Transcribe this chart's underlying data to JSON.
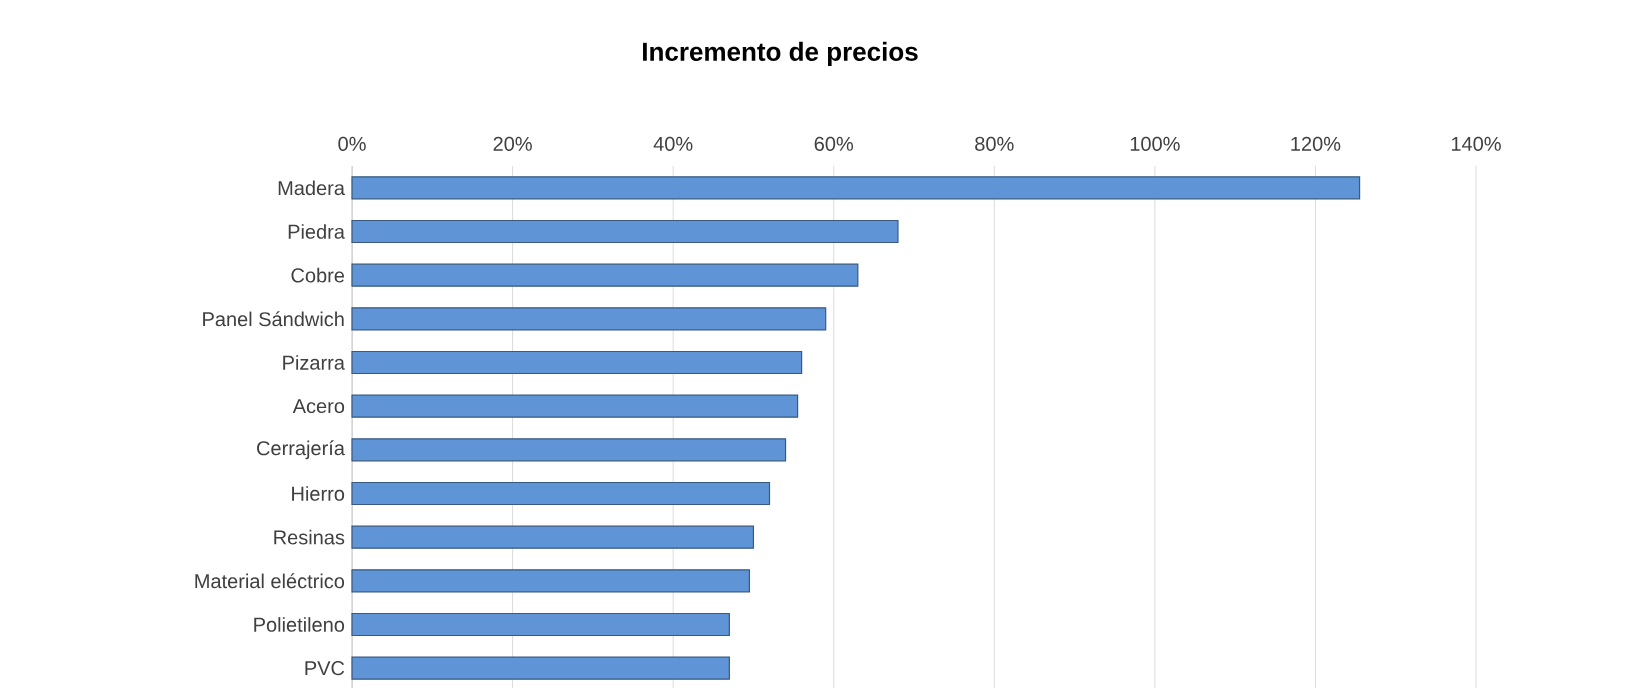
{
  "chart_data": {
    "type": "bar",
    "orientation": "horizontal",
    "title": "Incremento de precios",
    "categories": [
      "Madera",
      "Piedra",
      "Cobre",
      "Panel Sándwich",
      "Pizarra",
      "Acero",
      "Cerrajería",
      "Hierro",
      "Resinas",
      "Material eléctrico",
      "Polietileno",
      "PVC"
    ],
    "values": [
      125.5,
      68,
      63,
      59,
      56,
      55.5,
      54,
      52,
      50,
      49.5,
      47,
      47
    ],
    "color": "#5f95d6",
    "xlim": [
      0,
      140
    ],
    "xticks": [
      {
        "value": 0,
        "label": "0%"
      },
      {
        "value": 20,
        "label": "20%"
      },
      {
        "value": 40,
        "label": "40%"
      },
      {
        "value": 60,
        "label": "60%"
      },
      {
        "value": 80,
        "label": "80%"
      },
      {
        "value": 100,
        "label": "100%"
      },
      {
        "value": 120,
        "label": "120%"
      },
      {
        "value": 140,
        "label": "140%"
      }
    ],
    "grid": "x"
  }
}
